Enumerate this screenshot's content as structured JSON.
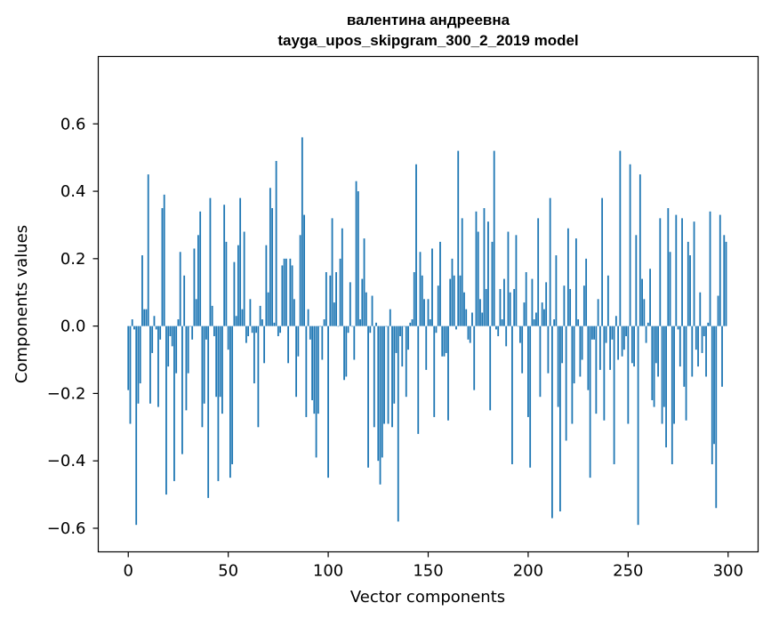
{
  "chart_data": {
    "type": "bar",
    "title_line1": "валентина андреевна",
    "title_line2": "tayga_upos_skipgram_300_2_2019 model",
    "xlabel": "Vector components",
    "ylabel": "Components values",
    "xlim": [
      -15,
      315
    ],
    "ylim": [
      -0.67,
      0.8
    ],
    "xticks": [
      0,
      50,
      100,
      150,
      200,
      250,
      300
    ],
    "xtick_labels": [
      "0",
      "50",
      "100",
      "150",
      "200",
      "250",
      "300"
    ],
    "yticks": [
      -0.6,
      -0.4,
      -0.2,
      0.0,
      0.2,
      0.4,
      0.6
    ],
    "ytick_labels": [
      "−0.6",
      "−0.4",
      "−0.2",
      "0.0",
      "0.2",
      "0.4",
      "0.6"
    ],
    "bar_color": "#1f77b4",
    "values": [
      -0.19,
      -0.29,
      0.02,
      -0.01,
      -0.59,
      -0.23,
      -0.17,
      0.21,
      0.05,
      0.05,
      0.45,
      -0.23,
      -0.08,
      0.03,
      -0.01,
      -0.24,
      -0.04,
      0.35,
      0.39,
      -0.5,
      -0.12,
      -0.03,
      -0.06,
      -0.46,
      -0.14,
      0.02,
      0.22,
      -0.38,
      0.15,
      -0.25,
      -0.14,
      0.0,
      -0.04,
      0.23,
      0.08,
      0.27,
      0.34,
      -0.3,
      -0.23,
      -0.04,
      -0.51,
      0.38,
      0.06,
      -0.03,
      -0.21,
      -0.46,
      -0.21,
      -0.26,
      0.36,
      0.25,
      -0.07,
      -0.45,
      -0.41,
      0.19,
      0.03,
      0.24,
      0.38,
      0.05,
      0.28,
      -0.05,
      -0.03,
      0.08,
      -0.02,
      -0.17,
      -0.02,
      -0.3,
      0.06,
      0.02,
      -0.11,
      0.24,
      0.1,
      0.41,
      0.35,
      0.01,
      0.49,
      -0.03,
      -0.02,
      0.18,
      0.2,
      0.2,
      -0.11,
      0.2,
      0.18,
      0.08,
      -0.21,
      -0.09,
      0.27,
      0.56,
      0.33,
      -0.27,
      0.05,
      -0.04,
      -0.22,
      -0.26,
      -0.39,
      -0.26,
      0.0,
      -0.1,
      0.02,
      0.16,
      -0.45,
      0.15,
      0.32,
      0.07,
      0.16,
      0.0,
      0.2,
      0.29,
      -0.16,
      -0.15,
      -0.02,
      0.13,
      0.0,
      -0.1,
      0.43,
      0.4,
      0.02,
      0.14,
      0.26,
      0.1,
      -0.42,
      -0.02,
      0.09,
      -0.3,
      0.01,
      -0.4,
      -0.47,
      -0.39,
      -0.29,
      0.0,
      -0.29,
      0.05,
      -0.3,
      -0.23,
      -0.08,
      -0.58,
      -0.03,
      -0.12,
      0.0,
      -0.21,
      -0.07,
      0.01,
      0.02,
      0.16,
      0.48,
      -0.32,
      0.22,
      0.15,
      0.08,
      -0.13,
      0.08,
      0.02,
      0.23,
      -0.27,
      -0.02,
      0.12,
      0.25,
      -0.09,
      -0.09,
      -0.08,
      -0.28,
      0.14,
      0.2,
      0.15,
      -0.01,
      0.52,
      0.15,
      0.32,
      0.1,
      0.05,
      -0.04,
      -0.05,
      0.04,
      -0.19,
      0.34,
      0.28,
      0.08,
      0.04,
      0.35,
      0.11,
      0.31,
      -0.25,
      0.25,
      0.52,
      -0.01,
      -0.03,
      0.11,
      0.02,
      0.14,
      -0.06,
      0.28,
      0.1,
      -0.41,
      0.11,
      0.27,
      0.0,
      -0.05,
      -0.14,
      0.07,
      0.16,
      -0.27,
      -0.42,
      0.14,
      0.02,
      0.04,
      0.32,
      -0.21,
      0.07,
      0.05,
      0.13,
      -0.14,
      0.38,
      -0.57,
      0.02,
      0.21,
      -0.24,
      -0.55,
      -0.11,
      0.12,
      -0.34,
      0.29,
      0.11,
      -0.29,
      -0.17,
      0.26,
      0.02,
      -0.15,
      -0.1,
      0.12,
      0.2,
      -0.19,
      -0.45,
      -0.04,
      -0.04,
      -0.26,
      0.08,
      -0.13,
      0.38,
      -0.28,
      -0.05,
      0.15,
      -0.13,
      -0.04,
      -0.41,
      0.03,
      -0.1,
      0.52,
      -0.09,
      -0.07,
      -0.03,
      -0.29,
      0.48,
      -0.11,
      -0.12,
      0.27,
      -0.59,
      0.45,
      0.14,
      0.08,
      -0.05,
      0.01,
      0.17,
      -0.22,
      -0.24,
      -0.11,
      -0.15,
      0.32,
      -0.29,
      -0.24,
      -0.36,
      0.35,
      0.22,
      -0.41,
      -0.29,
      0.33,
      -0.01,
      -0.12,
      0.32,
      -0.18,
      -0.28,
      0.25,
      0.21,
      -0.15,
      0.31,
      -0.07,
      -0.12,
      0.1,
      -0.08,
      -0.03,
      -0.15,
      0.01,
      0.34,
      -0.41,
      -0.35,
      -0.54,
      0.09,
      0.33,
      -0.18,
      0.27,
      0.25
    ]
  }
}
